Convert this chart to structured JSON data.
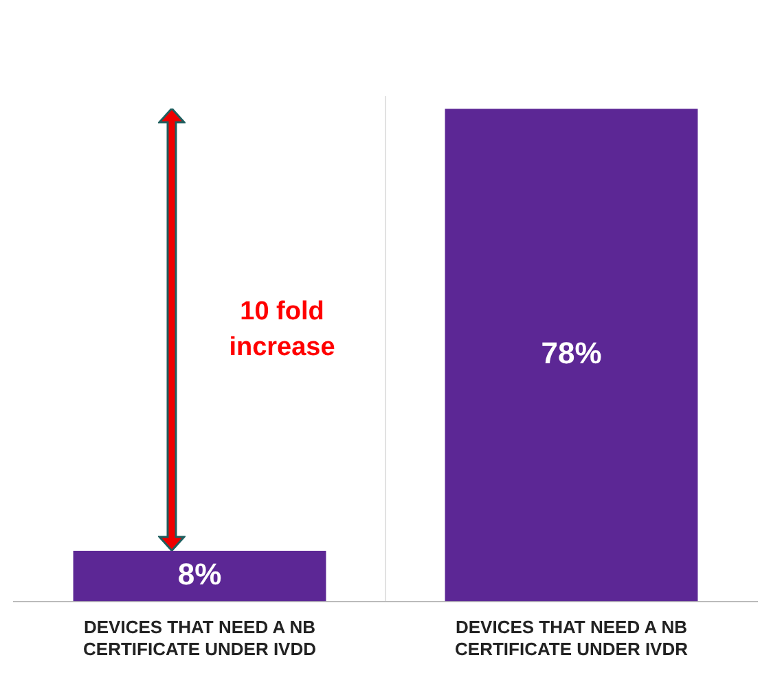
{
  "chart_data": {
    "type": "bar",
    "categories": [
      "DEVICES THAT NEED A NB CERTIFICATE UNDER IVDD",
      "DEVICES THAT NEED A NB CERTIFICATE UNDER IVDR"
    ],
    "values": [
      8,
      78
    ],
    "color": "#5c2795",
    "value_labels": [
      "8%",
      "78%"
    ],
    "annotations": [
      "10 fold increase"
    ],
    "grid": "x",
    "legend": false,
    "tick_labels": "x"
  }
}
